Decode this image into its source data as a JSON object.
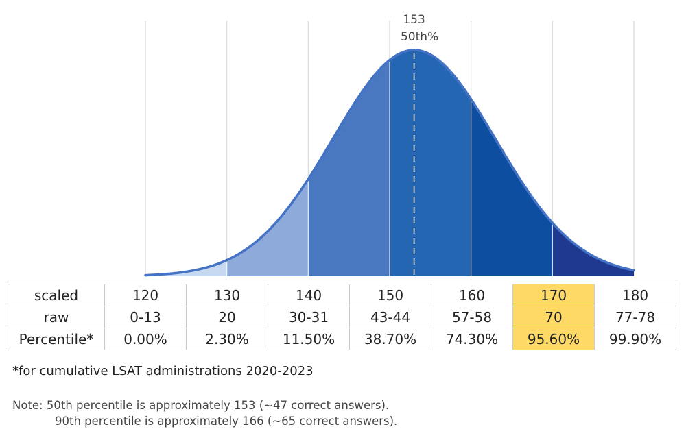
{
  "chart_data": {
    "type": "area",
    "title": "",
    "distribution": "normal",
    "mean": 153,
    "std_dev": 10,
    "xlim": [
      120,
      180
    ],
    "x_gridlines": [
      120,
      130,
      140,
      150,
      160,
      170,
      180
    ],
    "median_marker": {
      "x": 153,
      "label_value": "153",
      "label_percentile": "50th%"
    },
    "bands": [
      {
        "from": 120,
        "to": 130,
        "color": "#c6d9f1"
      },
      {
        "from": 130,
        "to": 140,
        "color": "#8eaadb"
      },
      {
        "from": 140,
        "to": 150,
        "color": "#4a78c0"
      },
      {
        "from": 150,
        "to": 160,
        "color": "#2566b3"
      },
      {
        "from": 160,
        "to": 170,
        "color": "#0d4ea0"
      },
      {
        "from": 170,
        "to": 180,
        "color": "#1f3990"
      }
    ],
    "curve_color": "#4472c4"
  },
  "table": {
    "rows": [
      {
        "label": "scaled",
        "values": [
          "120",
          "130",
          "140",
          "150",
          "160",
          "170",
          "180"
        ]
      },
      {
        "label": "raw",
        "values": [
          "0-13",
          "20",
          "30-31",
          "43-44",
          "57-58",
          "70",
          "77-78"
        ]
      },
      {
        "label": "Percentile*",
        "values": [
          "0.00%",
          "2.30%",
          "11.50%",
          "38.70%",
          "74.30%",
          "95.60%",
          "99.90%"
        ]
      }
    ],
    "highlight_color": "#ffd966"
  },
  "footnote": "*for cumulative LSAT administrations 2020-2023",
  "note": {
    "line1": "Note: 50th percentile is approximately 153 (~47 correct answers).",
    "line2": "90th percentile is approximately 166 (~65 correct answers)."
  }
}
